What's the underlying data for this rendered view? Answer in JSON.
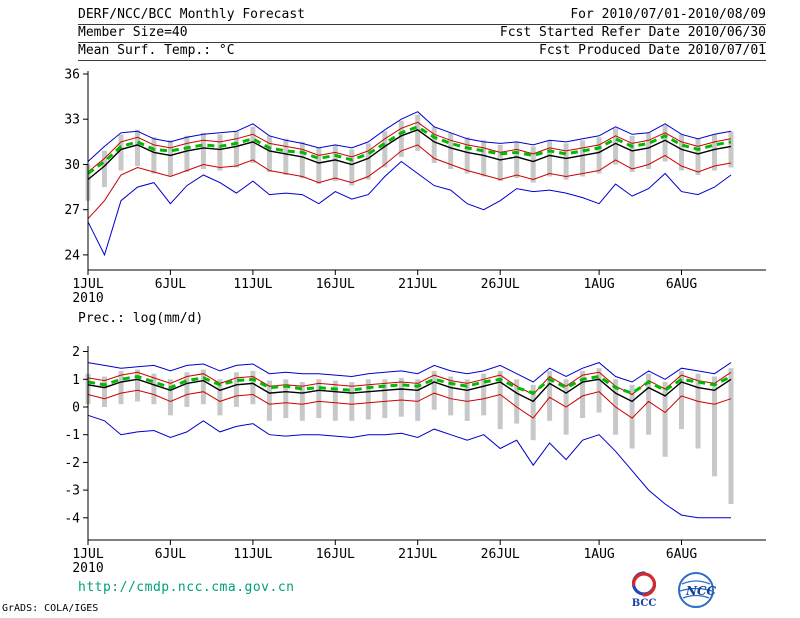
{
  "header": {
    "row1_left": "DERF/NCC/BCC Monthly Forecast",
    "row1_right": "For 2010/07/01-2010/08/09",
    "row2_left": "Member Size=40",
    "row2_right": "Fcst Started Refer Date 2010/06/30",
    "row3_left": "Mean Surf. Temp.: °C",
    "row3_right": "Fcst Produced Date 2010/07/01"
  },
  "footer": {
    "url": "http://cmdp.ncc.cma.gov.cn",
    "credit": "GrADS: COLA/IGES",
    "bcc_label": "BCC",
    "ncc_label": "NCC"
  },
  "colors": {
    "axis": "#000000",
    "bars": "#c8c8c8",
    "blue": "#0000cc",
    "red": "#cc0000",
    "black": "#000000",
    "green": "#00bb00",
    "url": "#00a07a"
  },
  "chart_data": [
    {
      "type": "line",
      "title": "Mean Surf. Temp.: °C",
      "xlabel": "",
      "ylabel": "°C",
      "ylim": [
        23,
        36.2
      ],
      "yticks": [
        24,
        27,
        30,
        33,
        36
      ],
      "grid": false,
      "legend": "none",
      "n_days": 40,
      "x_ticks": [
        {
          "label": "1JUL",
          "day": 0,
          "sub": "2010"
        },
        {
          "label": "6JUL",
          "day": 5
        },
        {
          "label": "11JUL",
          "day": 10
        },
        {
          "label": "16JUL",
          "day": 15
        },
        {
          "label": "21JUL",
          "day": 20
        },
        {
          "label": "26JUL",
          "day": 25
        },
        {
          "label": "1AUG",
          "day": 31
        },
        {
          "label": "6AUG",
          "day": 36
        }
      ],
      "bars": {
        "name": "ensemble-spread",
        "color": "#c8c8c8",
        "top": [
          30.0,
          30.9,
          32.0,
          32.3,
          31.8,
          31.6,
          31.9,
          32.1,
          32.0,
          32.2,
          32.5,
          31.9,
          31.7,
          31.5,
          31.1,
          31.3,
          31.0,
          31.4,
          32.2,
          32.9,
          33.3,
          32.5,
          32.1,
          31.8,
          31.6,
          31.3,
          31.5,
          31.2,
          31.6,
          31.4,
          31.6,
          31.8,
          32.4,
          31.9,
          32.1,
          32.6,
          32.0,
          31.7,
          32.0,
          32.2
        ],
        "bottom": [
          27.6,
          28.5,
          29.6,
          29.9,
          29.4,
          29.2,
          29.5,
          29.7,
          29.6,
          29.8,
          30.1,
          29.5,
          29.3,
          29.1,
          28.7,
          28.9,
          28.6,
          29.0,
          29.8,
          30.5,
          30.9,
          30.1,
          29.7,
          29.4,
          29.2,
          28.9,
          29.1,
          28.8,
          29.2,
          29.0,
          29.2,
          29.4,
          30.0,
          29.5,
          29.7,
          30.2,
          29.6,
          29.3,
          29.6,
          29.8
        ]
      },
      "series": [
        {
          "name": "ensemble-max",
          "color": "#0000cc",
          "width": 1,
          "values": [
            30.2,
            31.2,
            32.1,
            32.2,
            31.7,
            31.5,
            31.8,
            32.0,
            32.1,
            32.2,
            32.7,
            31.9,
            31.6,
            31.4,
            31.1,
            31.3,
            31.1,
            31.5,
            32.3,
            33.0,
            33.5,
            32.5,
            32.1,
            31.7,
            31.5,
            31.4,
            31.5,
            31.3,
            31.6,
            31.5,
            31.7,
            31.9,
            32.5,
            32.0,
            32.1,
            32.7,
            32.0,
            31.7,
            32.0,
            32.2
          ]
        },
        {
          "name": "ensemble-min",
          "color": "#0000cc",
          "width": 1,
          "values": [
            26.2,
            24.0,
            27.6,
            28.5,
            28.8,
            27.4,
            28.6,
            29.3,
            28.8,
            28.1,
            28.9,
            28.0,
            28.1,
            28.0,
            27.4,
            28.2,
            27.7,
            28.0,
            29.2,
            30.2,
            29.4,
            28.6,
            28.3,
            27.4,
            27.0,
            27.6,
            28.4,
            28.2,
            28.3,
            28.1,
            27.8,
            27.4,
            28.7,
            27.9,
            28.4,
            29.4,
            28.2,
            28.0,
            28.5,
            29.3
          ]
        },
        {
          "name": "mean-plus-sd",
          "color": "#cc0000",
          "width": 1,
          "values": [
            29.5,
            30.4,
            31.5,
            31.8,
            31.3,
            31.1,
            31.4,
            31.6,
            31.5,
            31.7,
            32.0,
            31.4,
            31.2,
            31.0,
            30.6,
            30.8,
            30.5,
            30.9,
            31.7,
            32.4,
            32.8,
            32.0,
            31.6,
            31.3,
            31.1,
            30.8,
            31.0,
            30.7,
            31.1,
            30.9,
            31.1,
            31.3,
            31.9,
            31.4,
            31.6,
            32.1,
            31.5,
            31.2,
            31.5,
            31.7
          ]
        },
        {
          "name": "mean-minus-sd",
          "color": "#cc0000",
          "width": 1,
          "values": [
            26.4,
            27.6,
            29.3,
            29.8,
            29.5,
            29.2,
            29.6,
            30.0,
            29.8,
            29.9,
            30.3,
            29.6,
            29.4,
            29.2,
            28.8,
            29.1,
            28.8,
            29.2,
            30.0,
            30.9,
            31.3,
            30.4,
            30.0,
            29.6,
            29.3,
            29.0,
            29.3,
            29.0,
            29.4,
            29.2,
            29.4,
            29.6,
            30.3,
            29.7,
            30.0,
            30.6,
            29.9,
            29.5,
            29.9,
            30.1
          ]
        },
        {
          "name": "ensemble-mean",
          "color": "#000000",
          "width": 1.4,
          "values": [
            29.0,
            29.9,
            31.0,
            31.3,
            30.8,
            30.6,
            30.9,
            31.1,
            31.0,
            31.2,
            31.5,
            30.9,
            30.7,
            30.5,
            30.1,
            30.3,
            30.0,
            30.4,
            31.2,
            31.9,
            32.3,
            31.5,
            31.1,
            30.8,
            30.6,
            30.3,
            30.5,
            30.2,
            30.6,
            30.4,
            30.6,
            30.8,
            31.4,
            30.9,
            31.1,
            31.6,
            31.0,
            30.7,
            31.0,
            31.2
          ]
        },
        {
          "name": "ensemble-median",
          "color": "#00bb00",
          "width": 3,
          "dash": "7,5",
          "values": [
            29.4,
            30.2,
            31.2,
            31.5,
            31.0,
            30.9,
            31.1,
            31.3,
            31.2,
            31.4,
            31.7,
            31.1,
            30.9,
            30.8,
            30.4,
            30.6,
            30.3,
            30.7,
            31.4,
            32.1,
            32.5,
            31.8,
            31.4,
            31.1,
            30.9,
            30.7,
            30.8,
            30.6,
            30.9,
            30.7,
            30.9,
            31.1,
            31.7,
            31.2,
            31.4,
            31.9,
            31.3,
            31.0,
            31.3,
            31.5
          ]
        }
      ]
    },
    {
      "type": "line",
      "title": "Prec.: log(mm/d)",
      "xlabel": "",
      "ylabel": "log(mm/d)",
      "ylim": [
        -4.8,
        2.2
      ],
      "yticks": [
        -4,
        -3,
        -2,
        -1,
        0,
        1,
        2
      ],
      "grid": false,
      "legend": "none",
      "n_days": 40,
      "x_ticks": [
        {
          "label": "1JUL",
          "day": 0,
          "sub": "2010"
        },
        {
          "label": "6JUL",
          "day": 5
        },
        {
          "label": "11JUL",
          "day": 10
        },
        {
          "label": "16JUL",
          "day": 15
        },
        {
          "label": "21JUL",
          "day": 20
        },
        {
          "label": "26JUL",
          "day": 25
        },
        {
          "label": "1AUG",
          "day": 31
        },
        {
          "label": "6AUG",
          "day": 36
        }
      ],
      "bars": {
        "name": "ensemble-spread",
        "color": "#c8c8c8",
        "top": [
          1.2,
          1.1,
          1.3,
          1.35,
          1.2,
          1.0,
          1.25,
          1.35,
          1.0,
          1.25,
          1.3,
          0.95,
          1.0,
          0.9,
          1.0,
          0.95,
          0.9,
          1.0,
          1.0,
          1.05,
          1.0,
          1.3,
          1.1,
          1.0,
          1.2,
          1.3,
          1.0,
          0.8,
          1.3,
          1.0,
          1.3,
          1.4,
          1.0,
          0.8,
          1.2,
          0.9,
          1.3,
          1.2,
          1.1,
          1.4
        ],
        "bottom": [
          0.1,
          0.0,
          0.1,
          0.2,
          0.1,
          -0.3,
          0.0,
          0.1,
          -0.3,
          0.0,
          0.1,
          -0.5,
          -0.4,
          -0.5,
          -0.4,
          -0.5,
          -0.5,
          -0.45,
          -0.4,
          -0.35,
          -0.5,
          -0.1,
          -0.3,
          -0.5,
          -0.3,
          -0.8,
          -0.6,
          -1.2,
          -0.5,
          -1.0,
          -0.4,
          -0.2,
          -1.0,
          -1.5,
          -1.0,
          -1.8,
          -0.8,
          -1.5,
          -2.5,
          -3.5
        ]
      },
      "series": [
        {
          "name": "ensemble-max",
          "color": "#0000cc",
          "width": 1,
          "values": [
            1.6,
            1.5,
            1.4,
            1.45,
            1.5,
            1.3,
            1.5,
            1.55,
            1.3,
            1.5,
            1.55,
            1.2,
            1.25,
            1.2,
            1.2,
            1.15,
            1.1,
            1.2,
            1.25,
            1.3,
            1.2,
            1.5,
            1.3,
            1.2,
            1.3,
            1.5,
            1.2,
            0.9,
            1.4,
            1.1,
            1.4,
            1.6,
            1.1,
            0.9,
            1.3,
            1.0,
            1.4,
            1.3,
            1.2,
            1.6
          ]
        },
        {
          "name": "ensemble-min",
          "color": "#0000cc",
          "width": 1,
          "values": [
            -0.3,
            -0.5,
            -1.0,
            -0.9,
            -0.85,
            -1.1,
            -0.9,
            -0.5,
            -0.9,
            -0.7,
            -0.6,
            -1.0,
            -1.05,
            -1.0,
            -1.0,
            -1.05,
            -1.1,
            -1.0,
            -1.0,
            -0.95,
            -1.1,
            -0.8,
            -1.0,
            -1.2,
            -1.0,
            -1.5,
            -1.2,
            -2.1,
            -1.3,
            -1.9,
            -1.2,
            -1.0,
            -1.6,
            -2.3,
            -3.0,
            -3.5,
            -3.9,
            -4.0,
            -4.0,
            -4.0
          ]
        },
        {
          "name": "mean-plus-sd",
          "color": "#cc0000",
          "width": 1,
          "values": [
            1.05,
            0.95,
            1.15,
            1.25,
            1.05,
            0.85,
            1.1,
            1.2,
            0.85,
            1.05,
            1.1,
            0.75,
            0.8,
            0.75,
            0.85,
            0.8,
            0.75,
            0.8,
            0.85,
            0.9,
            0.85,
            1.15,
            0.95,
            0.85,
            1.0,
            1.15,
            0.75,
            0.45,
            1.1,
            0.75,
            1.15,
            1.25,
            0.75,
            0.45,
            0.95,
            0.65,
            1.15,
            0.95,
            0.85,
            1.25
          ]
        },
        {
          "name": "mean-minus-sd",
          "color": "#cc0000",
          "width": 1,
          "values": [
            0.45,
            0.3,
            0.5,
            0.6,
            0.45,
            0.2,
            0.45,
            0.55,
            0.2,
            0.4,
            0.45,
            0.1,
            0.15,
            0.1,
            0.2,
            0.15,
            0.1,
            0.15,
            0.2,
            0.25,
            0.2,
            0.5,
            0.3,
            0.2,
            0.3,
            0.45,
            0.0,
            -0.4,
            0.35,
            0.0,
            0.4,
            0.55,
            0.0,
            -0.4,
            0.2,
            -0.2,
            0.4,
            0.2,
            0.1,
            0.3
          ]
        },
        {
          "name": "ensemble-mean",
          "color": "#000000",
          "width": 1.4,
          "values": [
            0.8,
            0.7,
            0.9,
            1.0,
            0.8,
            0.6,
            0.85,
            0.95,
            0.6,
            0.8,
            0.85,
            0.5,
            0.55,
            0.5,
            0.6,
            0.55,
            0.5,
            0.55,
            0.6,
            0.65,
            0.6,
            0.9,
            0.7,
            0.6,
            0.75,
            0.9,
            0.5,
            0.2,
            0.85,
            0.5,
            0.9,
            1.0,
            0.5,
            0.2,
            0.7,
            0.4,
            0.9,
            0.7,
            0.6,
            1.0
          ]
        },
        {
          "name": "ensemble-median",
          "color": "#00bb00",
          "width": 3,
          "dash": "7,5",
          "values": [
            0.9,
            0.8,
            1.0,
            1.1,
            0.9,
            0.7,
            0.95,
            1.05,
            0.8,
            0.95,
            1.0,
            0.7,
            0.75,
            0.65,
            0.7,
            0.65,
            0.6,
            0.7,
            0.75,
            0.8,
            0.75,
            1.0,
            0.85,
            0.75,
            0.9,
            1.0,
            0.7,
            0.5,
            1.0,
            0.7,
            1.0,
            1.1,
            0.7,
            0.5,
            0.9,
            0.6,
            1.0,
            0.9,
            0.8,
            1.1
          ]
        }
      ]
    }
  ]
}
